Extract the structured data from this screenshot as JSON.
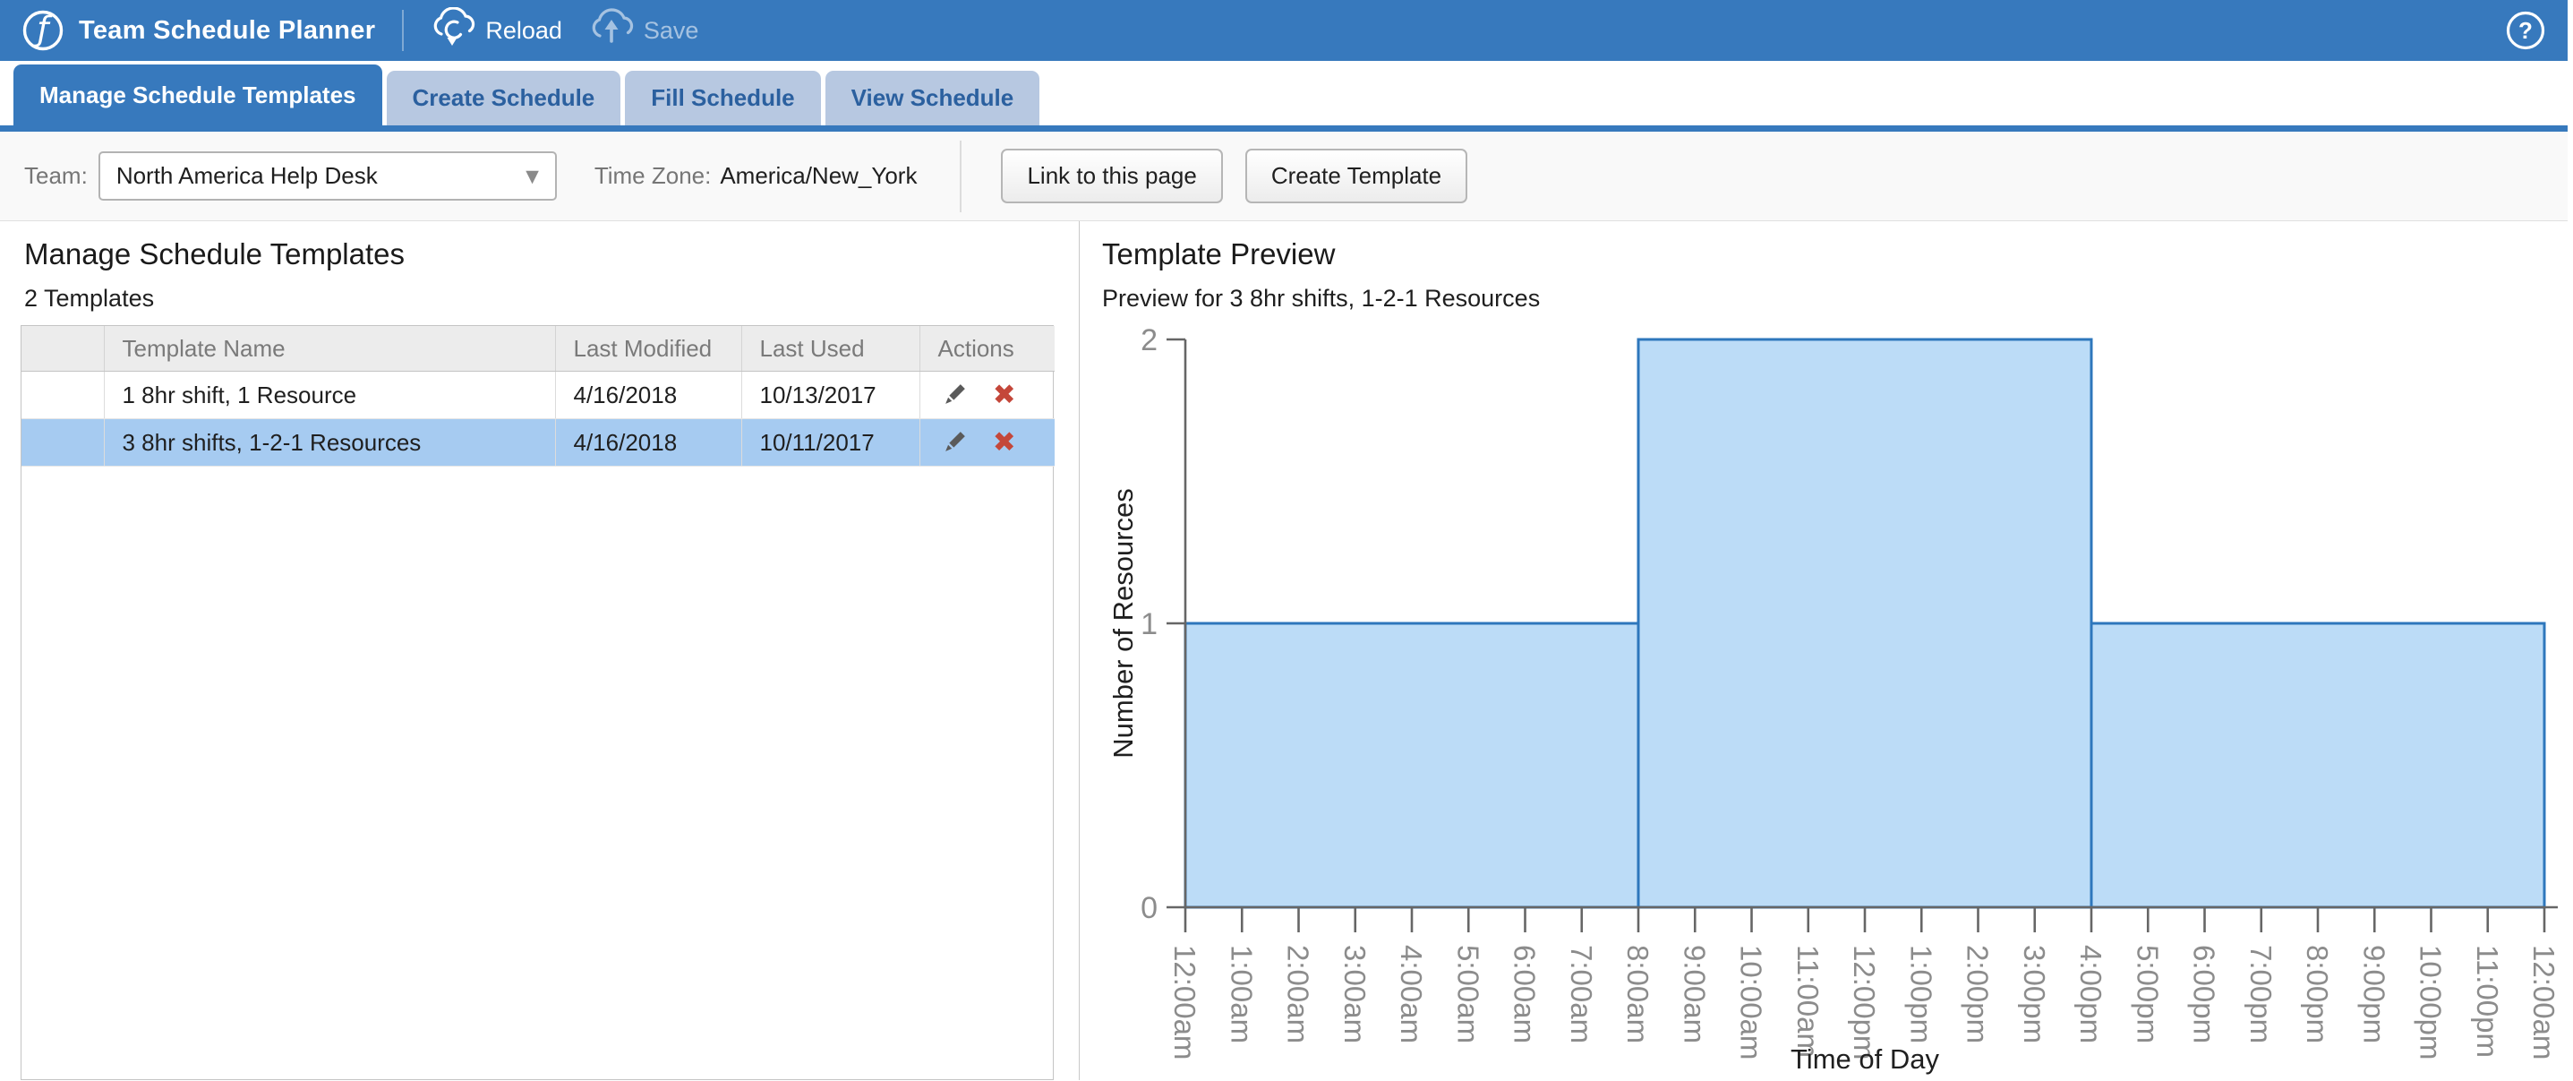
{
  "header": {
    "title": "Team Schedule Planner",
    "reload_label": "Reload",
    "save_label": "Save"
  },
  "icons": {
    "logo": "ƒ",
    "help": "?",
    "caret": "▼",
    "delete": "✖"
  },
  "tabs": [
    {
      "label": "Manage Schedule Templates",
      "active": true
    },
    {
      "label": "Create Schedule",
      "active": false
    },
    {
      "label": "Fill Schedule",
      "active": false
    },
    {
      "label": "View Schedule",
      "active": false
    }
  ],
  "toolbar": {
    "team_label": "Team:",
    "team_value": "North America Help Desk",
    "timezone_label": "Time Zone:",
    "timezone_value": "America/New_York",
    "link_button": "Link to this page",
    "create_button": "Create Template"
  },
  "templates_panel": {
    "title": "Manage Schedule Templates",
    "count_text": "2 Templates",
    "columns": [
      "",
      "Template Name",
      "Last Modified",
      "Last Used",
      "Actions"
    ],
    "rows": [
      {
        "name": "1 8hr shift, 1 Resource",
        "last_modified": "4/16/2018",
        "last_used": "10/13/2017",
        "selected": false
      },
      {
        "name": "3 8hr shifts, 1-2-1 Resources",
        "last_modified": "4/16/2018",
        "last_used": "10/11/2017",
        "selected": true
      }
    ]
  },
  "preview_panel": {
    "title": "Template Preview",
    "subtitle": "Preview for 3 8hr shifts, 1-2-1 Resources"
  },
  "chart_data": {
    "type": "area",
    "title": "Preview for 3 8hr shifts, 1-2-1 Resources",
    "xlabel": "Time of Day",
    "ylabel": "Number of Resources",
    "ylim": [
      0,
      2
    ],
    "y_ticks": [
      0,
      1,
      2
    ],
    "x_tick_labels": [
      "12:00am",
      "1:00am",
      "2:00am",
      "3:00am",
      "4:00am",
      "5:00am",
      "6:00am",
      "7:00am",
      "8:00am",
      "9:00am",
      "10:00am",
      "11:00am",
      "12:00pm",
      "1:00pm",
      "2:00pm",
      "3:00pm",
      "4:00pm",
      "5:00pm",
      "6:00pm",
      "7:00pm",
      "8:00pm",
      "9:00pm",
      "10:00pm",
      "11:00pm",
      "12:00am"
    ],
    "segments": [
      {
        "start_hour": 0,
        "end_hour": 8,
        "value": 1
      },
      {
        "start_hour": 8,
        "end_hour": 16,
        "value": 2
      },
      {
        "start_hour": 16,
        "end_hour": 24,
        "value": 1
      }
    ],
    "grid": false,
    "legend": "none",
    "fill_color": "#bcdcf7",
    "line_color": "#2e77bc",
    "axis_color": "#666666",
    "tick_text_color": "#8c8c8c"
  },
  "colors": {
    "brand_blue": "#3779bd",
    "inactive_tab": "#b7c8e1",
    "selected_row": "#a6cbf1",
    "delete_red": "#c4473a"
  }
}
